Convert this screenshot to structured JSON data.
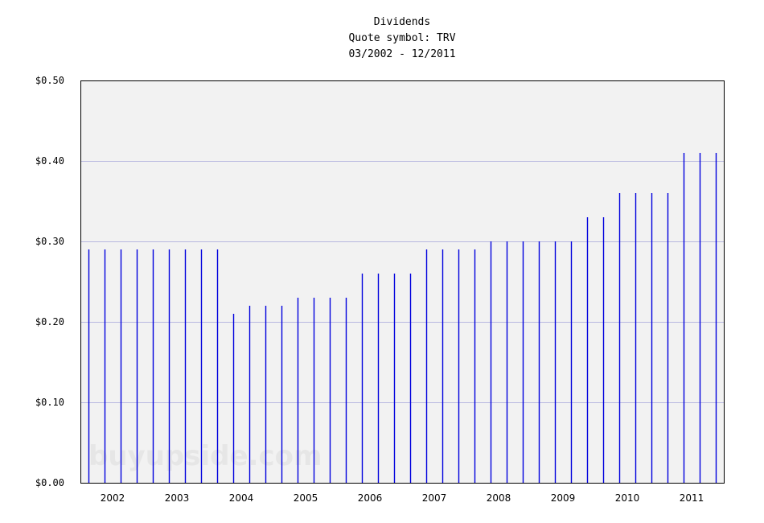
{
  "header": {
    "title": "Dividends",
    "subtitle": "Quote symbol: TRV",
    "range": "03/2002 - 12/2011"
  },
  "watermark": "buyupside.com",
  "colors": {
    "plot_bg": "#f2f2f2",
    "bar": "#0000dd",
    "grid": "#b8b8e0",
    "axis": "#000000"
  },
  "chart_data": {
    "type": "bar",
    "title": "Dividends",
    "subtitle": "Quote symbol: TRV",
    "period": "03/2002 - 12/2011",
    "xlabel": "",
    "ylabel": "",
    "ylim": [
      0,
      0.5
    ],
    "yticks": [
      "$0.00",
      "$0.10",
      "$0.20",
      "$0.30",
      "$0.40",
      "$0.50"
    ],
    "xticks": [
      "2002",
      "2003",
      "2004",
      "2005",
      "2006",
      "2007",
      "2008",
      "2009",
      "2010",
      "2011"
    ],
    "grid": true,
    "legend": null,
    "values": [
      0.29,
      0.29,
      0.29,
      0.29,
      0.29,
      0.29,
      0.29,
      0.29,
      0.29,
      0.21,
      0.22,
      0.22,
      0.22,
      0.23,
      0.23,
      0.23,
      0.23,
      0.26,
      0.26,
      0.26,
      0.26,
      0.29,
      0.29,
      0.29,
      0.29,
      0.3,
      0.3,
      0.3,
      0.3,
      0.3,
      0.3,
      0.33,
      0.33,
      0.36,
      0.36,
      0.36,
      0.36,
      0.41,
      0.41,
      0.41
    ]
  }
}
